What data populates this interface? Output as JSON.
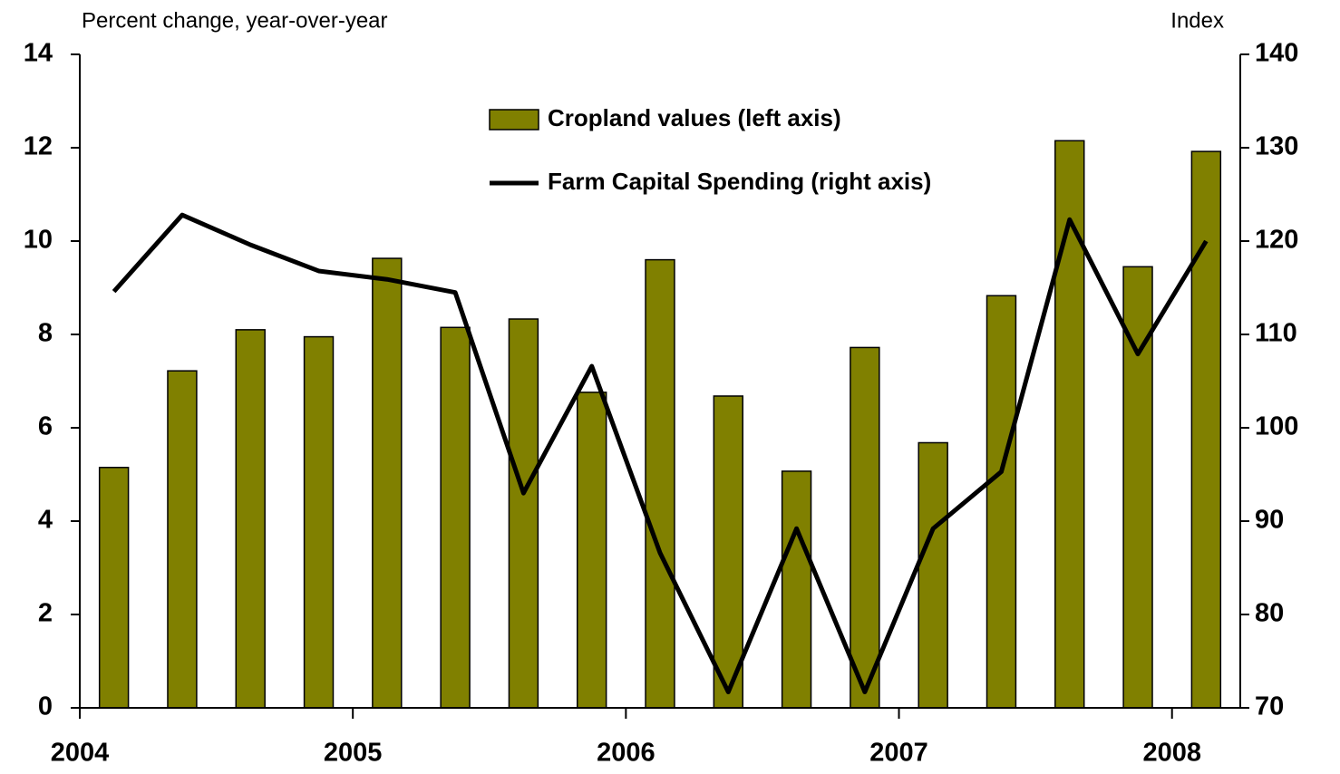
{
  "chart_data": {
    "type": "bar",
    "y_label": "Percent change, year-over-year",
    "y2_label": "Index",
    "x": [
      2004.125,
      2004.375,
      2004.625,
      2004.875,
      2005.125,
      2005.375,
      2005.625,
      2005.875,
      2006.125,
      2006.375,
      2006.625,
      2006.875,
      2007.125,
      2007.375,
      2007.625,
      2007.875,
      2008.125
    ],
    "series": [
      {
        "name": "Cropland values (left axis)",
        "type": "bar",
        "color": "#808000",
        "values": [
          5.15,
          7.22,
          8.1,
          7.95,
          9.63,
          8.15,
          8.33,
          6.76,
          9.6,
          6.68,
          5.07,
          7.72,
          5.68,
          8.83,
          12.15,
          9.45,
          11.92
        ]
      },
      {
        "name": "Farm Capital Spending (right axis)",
        "type": "line",
        "color": "#000000",
        "axis": "y2",
        "values": [
          114.6,
          122.8,
          119.6,
          116.8,
          115.9,
          114.5,
          93.0,
          106.6,
          86.6,
          71.7,
          89.2,
          71.7,
          89.2,
          95.3,
          122.3,
          107.9,
          120.0
        ]
      }
    ],
    "xlim": [
      2004,
      2008.25
    ],
    "xticks": [
      2004,
      2005,
      2006,
      2007,
      2008
    ],
    "ylim": [
      0,
      14
    ],
    "yticks": [
      0,
      2,
      4,
      6,
      8,
      10,
      12,
      14
    ],
    "y2lim": [
      70,
      140
    ],
    "y2ticks": [
      70,
      80,
      90,
      100,
      110,
      120,
      130,
      140
    ],
    "grid": false,
    "legend": "top"
  }
}
